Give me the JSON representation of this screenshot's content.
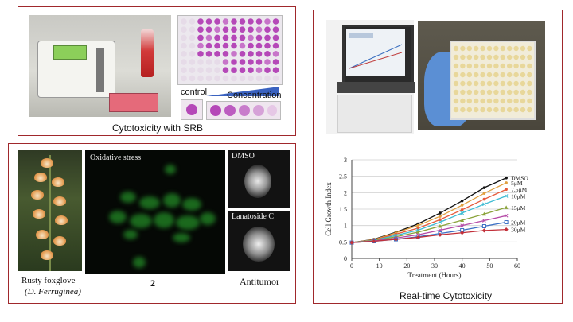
{
  "srb_panel": {
    "caption": "Cytotoxicity with SRB",
    "control_label": "control",
    "concentration_label": "Concentration"
  },
  "antitumor_panel": {
    "plant_caption_line1": "Rusty foxglove",
    "plant_caption_line2": "(D. Ferruginea)",
    "oxidative_label": "Oxidative stress",
    "compound_number": "2",
    "dmso_label": "DMSO",
    "lanatoside_label": "Lanatoside C",
    "antitumor_label": "Antitumor"
  },
  "rtca_panel": {
    "caption": "Real-time Cytotoxicity"
  },
  "colors": {
    "panel_border": "#a0282c",
    "srb_purple": "#b548b8",
    "fluorescence_green": "#1f7a22"
  },
  "chart_data": {
    "type": "line",
    "title": "",
    "xlabel": "Treatment (Hours)",
    "ylabel": "Cell Growth Index",
    "xlim": [
      0,
      60
    ],
    "ylim": [
      0,
      3
    ],
    "xticks": [
      0,
      10,
      20,
      30,
      40,
      50,
      60
    ],
    "yticks": [
      0,
      0.5,
      1,
      1.5,
      2,
      2.5,
      3
    ],
    "grid": "horizontal",
    "legend": "inline-right",
    "x": [
      0,
      8,
      16,
      24,
      32,
      40,
      48,
      56
    ],
    "series": [
      {
        "name": "DMSO",
        "color": "#111111",
        "marker": "circle",
        "values": [
          0.48,
          0.58,
          0.8,
          1.05,
          1.38,
          1.75,
          2.15,
          2.45
        ]
      },
      {
        "name": "5μM",
        "color": "#e0a040",
        "marker": "circle",
        "values": [
          0.48,
          0.57,
          0.78,
          1.0,
          1.28,
          1.62,
          1.98,
          2.3
        ]
      },
      {
        "name": "7.5μM",
        "color": "#e65a3c",
        "marker": "circle",
        "values": [
          0.48,
          0.56,
          0.74,
          0.92,
          1.18,
          1.48,
          1.8,
          2.1
        ]
      },
      {
        "name": "10μM",
        "color": "#3dbbd3",
        "marker": "x",
        "values": [
          0.48,
          0.55,
          0.7,
          0.86,
          1.1,
          1.38,
          1.65,
          1.9
        ]
      },
      {
        "name": "15μM",
        "color": "#8aa33a",
        "marker": "triangle",
        "values": [
          0.48,
          0.54,
          0.66,
          0.8,
          0.98,
          1.16,
          1.35,
          1.55
        ]
      },
      {
        "name": "",
        "color": "#b54aa6",
        "marker": "x",
        "values": [
          0.48,
          0.53,
          0.62,
          0.72,
          0.86,
          1.0,
          1.15,
          1.3
        ]
      },
      {
        "name": "20μM",
        "color": "#3b6fc4",
        "marker": "square",
        "values": [
          0.48,
          0.52,
          0.58,
          0.66,
          0.76,
          0.86,
          0.98,
          1.1
        ]
      },
      {
        "name": "30μM",
        "color": "#c2303a",
        "marker": "diamond",
        "values": [
          0.48,
          0.52,
          0.58,
          0.64,
          0.72,
          0.78,
          0.85,
          0.88
        ]
      }
    ]
  }
}
